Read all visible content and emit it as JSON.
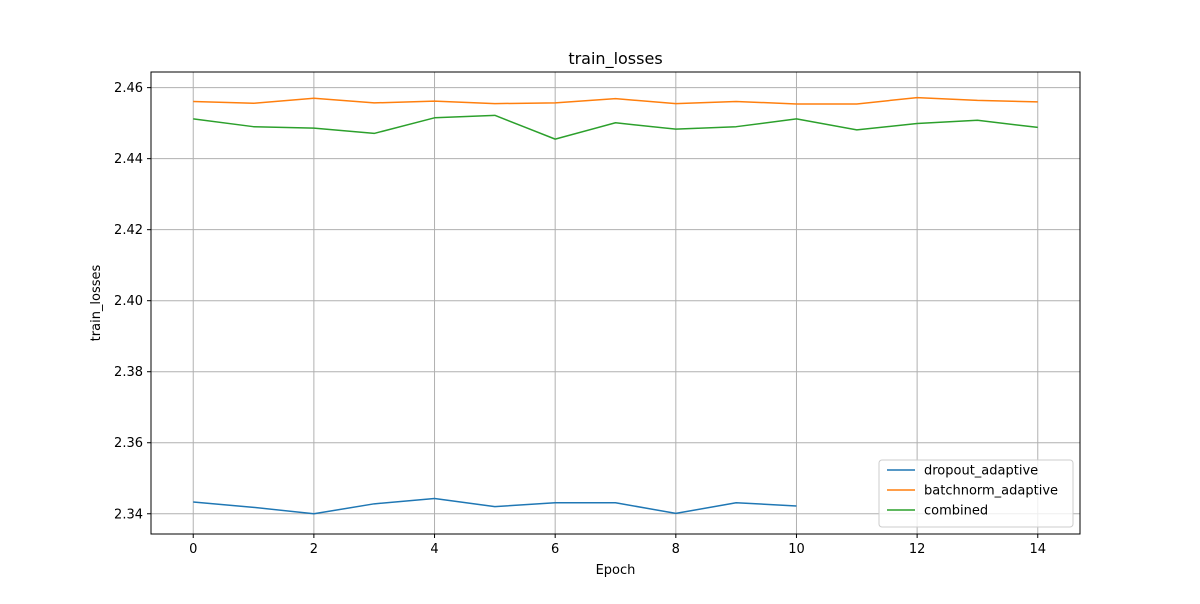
{
  "chart_data": {
    "type": "line",
    "title": "train_losses",
    "xlabel": "Epoch",
    "ylabel": "train_losses",
    "xlim": [
      -0.7,
      14.7
    ],
    "ylim": [
      2.3343,
      2.4644
    ],
    "x_ticks": [
      0,
      2,
      4,
      6,
      8,
      10,
      12,
      14
    ],
    "y_ticks": [
      2.34,
      2.36,
      2.38,
      2.4,
      2.42,
      2.44,
      2.46
    ],
    "y_tick_labels": [
      "2.34",
      "2.36",
      "2.38",
      "2.40",
      "2.42",
      "2.44",
      "2.46"
    ],
    "grid": true,
    "legend_position": "lower-right",
    "series": [
      {
        "name": "dropout_adaptive",
        "color": "#1f77b4",
        "x": [
          0,
          1,
          2,
          3,
          4,
          5,
          6,
          7,
          8,
          9,
          10
        ],
        "values": [
          2.3433,
          2.3418,
          2.34,
          2.3428,
          2.3443,
          2.342,
          2.3431,
          2.3431,
          2.3401,
          2.3431,
          2.3422
        ]
      },
      {
        "name": "batchnorm_adaptive",
        "color": "#ff7f0e",
        "x": [
          0,
          1,
          2,
          3,
          4,
          5,
          6,
          7,
          8,
          9,
          10,
          11,
          12,
          13,
          14
        ],
        "values": [
          2.4561,
          2.4556,
          2.457,
          2.4557,
          2.4562,
          2.4555,
          2.4557,
          2.4569,
          2.4555,
          2.4561,
          2.4554,
          2.4554,
          2.4572,
          2.4564,
          2.456
        ]
      },
      {
        "name": "combined",
        "color": "#2ca02c",
        "x": [
          0,
          1,
          2,
          3,
          4,
          5,
          6,
          7,
          8,
          9,
          10,
          11,
          12,
          13,
          14
        ],
        "values": [
          2.4512,
          2.449,
          2.4486,
          2.4471,
          2.4515,
          2.4522,
          2.4455,
          2.4501,
          2.4483,
          2.449,
          2.4512,
          2.4481,
          2.4499,
          2.4508,
          2.4488
        ]
      }
    ]
  }
}
